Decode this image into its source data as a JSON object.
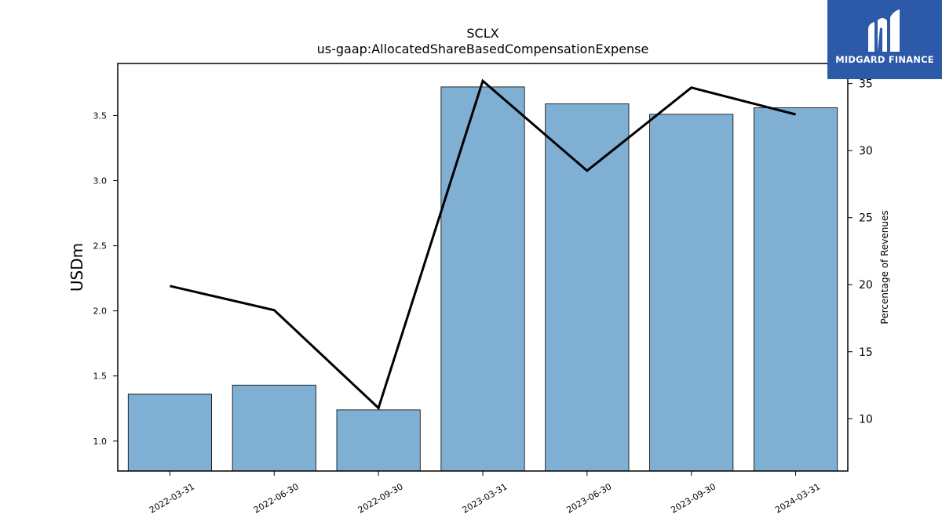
{
  "brand": {
    "name": "MIDGARD FINANCE",
    "color": "#2c5aa8",
    "icon": "midgard-m-logo-icon"
  },
  "chart_data": {
    "type": "bar",
    "title": "SCLX",
    "subtitle": "us-gaap:AllocatedShareBasedCompensationExpense",
    "categories": [
      "2022-03-31",
      "2022-06-30",
      "2022-09-30",
      "2023-03-31",
      "2023-06-30",
      "2023-09-30",
      "2024-03-31"
    ],
    "series": [
      {
        "type": "bar",
        "axis": "left",
        "color": "#7fafd3",
        "values": [
          1.36,
          1.43,
          1.24,
          3.72,
          3.59,
          3.51,
          3.56
        ]
      },
      {
        "type": "line",
        "axis": "right",
        "color": "#000000",
        "values": [
          19.9,
          18.1,
          10.8,
          35.2,
          28.5,
          34.7,
          32.7
        ]
      }
    ],
    "ylabel": "USDm",
    "y2label": "Percentage of Revenues",
    "ylim": [
      0.77,
      3.9
    ],
    "y2lim": [
      6.1,
      36.5
    ],
    "yticks": [
      "1.0",
      "1.5",
      "2.0",
      "2.5",
      "3.0",
      "3.5"
    ],
    "y2ticks": [
      "10",
      "15",
      "20",
      "25",
      "30",
      "35"
    ],
    "grid": false
  }
}
